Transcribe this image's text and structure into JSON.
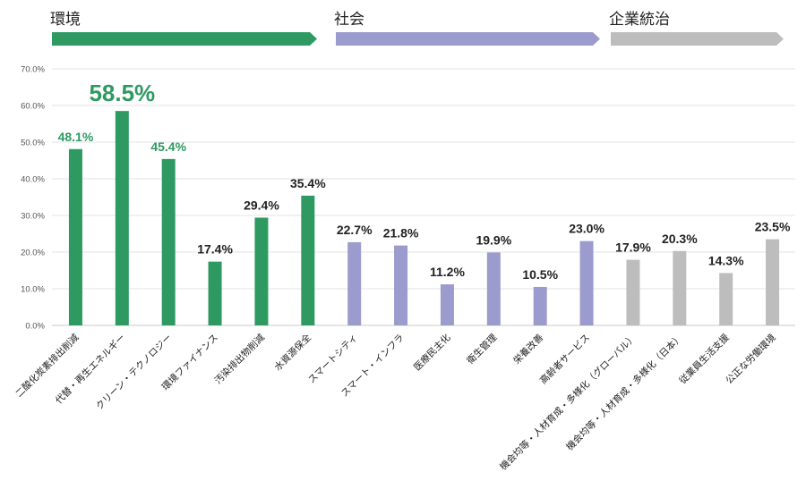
{
  "chart_data": {
    "type": "bar",
    "ylim": [
      0,
      70
    ],
    "yticks": [
      "0.0%",
      "10.0%",
      "20.0%",
      "30.0%",
      "40.0%",
      "50.0%",
      "60.0%",
      "70.0%"
    ],
    "groups": [
      {
        "name": "環境",
        "color": "#2e9a62"
      },
      {
        "name": "社会",
        "color": "#9b9bce"
      },
      {
        "name": "企業統治",
        "color": "#bdbdbd"
      }
    ],
    "categories": [
      "二酸化炭素排出削減",
      "代替・再生エネルギー",
      "クリーン・テクノロジー",
      "環境ファイナンス",
      "汚染排出物削減",
      "水資源保全",
      "スマートシティ",
      "スマート・インフラ",
      "医療民主化",
      "衛生管理",
      "栄養改善",
      "高齢者サービス",
      "機会均等・人材育成・多様化（グローバル）",
      "機会均等・人材育成・多様化（日本）",
      "従業員生活支援",
      "公正な労働環境"
    ],
    "values": [
      48.1,
      58.5,
      45.4,
      17.4,
      29.4,
      35.4,
      22.7,
      21.8,
      11.2,
      19.9,
      10.5,
      23.0,
      17.9,
      20.3,
      14.3,
      23.5
    ],
    "labels": [
      "48.1%",
      "58.5%",
      "45.4%",
      "17.4%",
      "29.4%",
      "35.4%",
      "22.7%",
      "21.8%",
      "11.2%",
      "19.9%",
      "10.5%",
      "23.0%",
      "17.9%",
      "20.3%",
      "14.3%",
      "23.5%"
    ],
    "group_index": [
      0,
      0,
      0,
      0,
      0,
      0,
      1,
      1,
      1,
      1,
      1,
      1,
      2,
      2,
      2,
      2
    ],
    "label_color": [
      "#2e9a62",
      "#2e9a62",
      "#2e9a62",
      "#222222",
      "#222222",
      "#222222",
      "#222222",
      "#222222",
      "#222222",
      "#222222",
      "#222222",
      "#222222",
      "#222222",
      "#222222",
      "#222222",
      "#222222"
    ]
  }
}
